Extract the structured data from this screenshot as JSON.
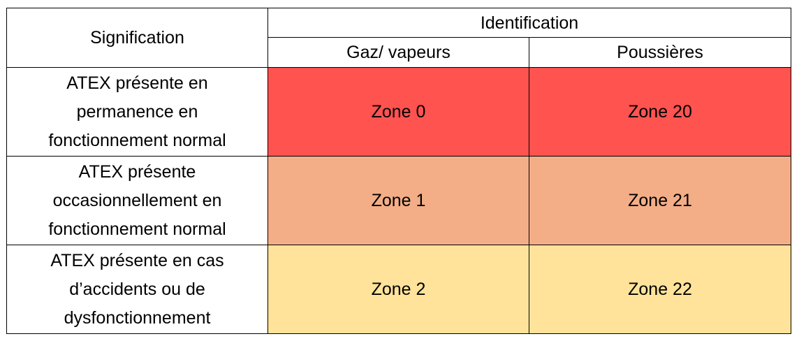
{
  "table": {
    "signification_header": "Signification",
    "identification_header": "Identification",
    "gas_header": "Gaz/ vapeurs",
    "dust_header": "Poussières",
    "rows": [
      {
        "signification": "ATEX présente en\npermanence en\nfonctionnement normal",
        "gas_zone": "Zone 0",
        "dust_zone": "Zone 20",
        "color": "#ff5350"
      },
      {
        "signification": "ATEX présente\noccasionnellement en\nfonctionnement normal",
        "gas_zone": "Zone 1",
        "dust_zone": "Zone 21",
        "color": "#f3ae87"
      },
      {
        "signification": "ATEX présente en cas\nd’accidents ou de\ndysfonctionnement",
        "gas_zone": "Zone 2",
        "dust_zone": "Zone 22",
        "color": "#ffe39b"
      }
    ]
  }
}
